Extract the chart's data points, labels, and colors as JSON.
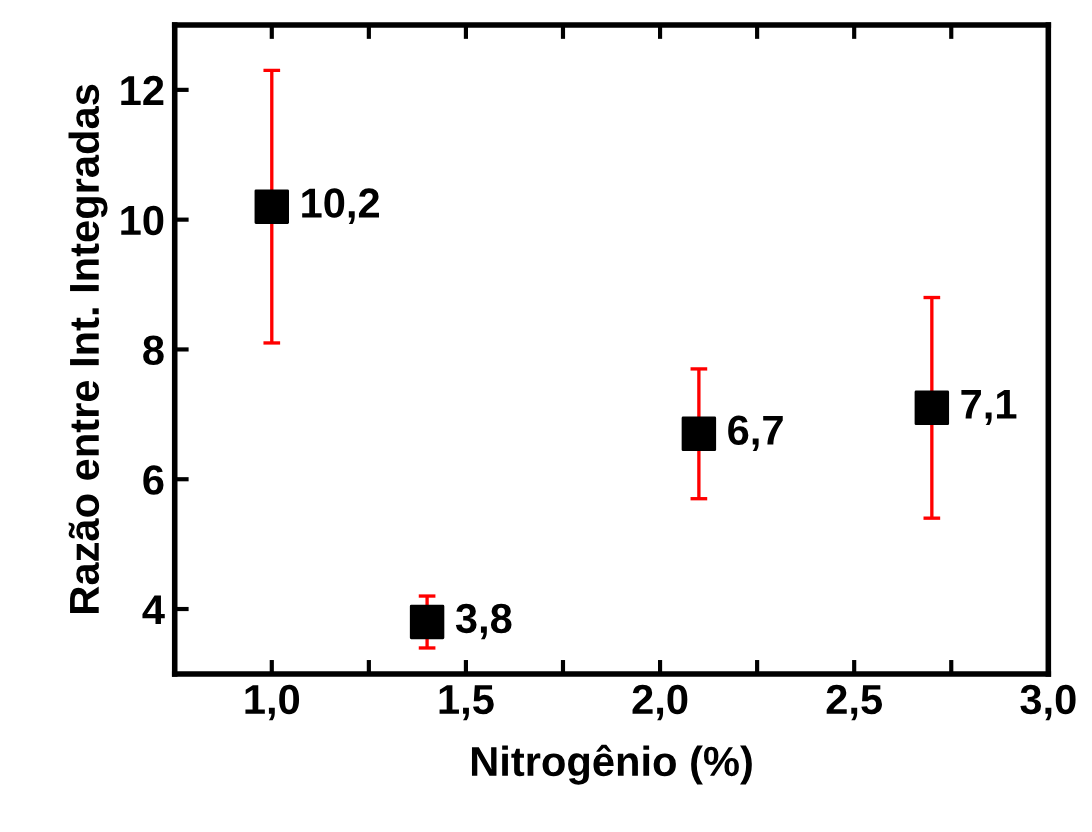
{
  "chart_data": {
    "type": "scatter",
    "xlabel": "Nitrogênio (%)",
    "ylabel": "Razão entre Int. Integradas",
    "x": [
      1.0,
      1.4,
      2.1,
      2.7
    ],
    "values": [
      10.2,
      3.8,
      6.7,
      7.1
    ],
    "errors": [
      [
        8.1,
        12.3
      ],
      [
        3.4,
        4.2
      ],
      [
        5.7,
        7.7
      ],
      [
        5.4,
        8.8
      ]
    ],
    "value_labels": [
      "10,2",
      "3,8",
      "6,7",
      "7,1"
    ],
    "color": "#000000",
    "marker": "square",
    "xlim": [
      0.75,
      3.0
    ],
    "xticks": [
      {
        "value": 1.0,
        "label": "1,0"
      },
      {
        "value": 1.25,
        "label": null
      },
      {
        "value": 1.5,
        "label": "1,5"
      },
      {
        "value": 1.75,
        "label": null
      },
      {
        "value": 2.0,
        "label": "2,0"
      },
      {
        "value": 2.25,
        "label": null
      },
      {
        "value": 2.5,
        "label": "2,5"
      },
      {
        "value": 2.75,
        "label": null
      },
      {
        "value": 3.0,
        "label": "3,0"
      }
    ],
    "ylim": [
      3,
      13
    ],
    "yticks": [
      4,
      6,
      8,
      10,
      12
    ],
    "grid": false
  }
}
